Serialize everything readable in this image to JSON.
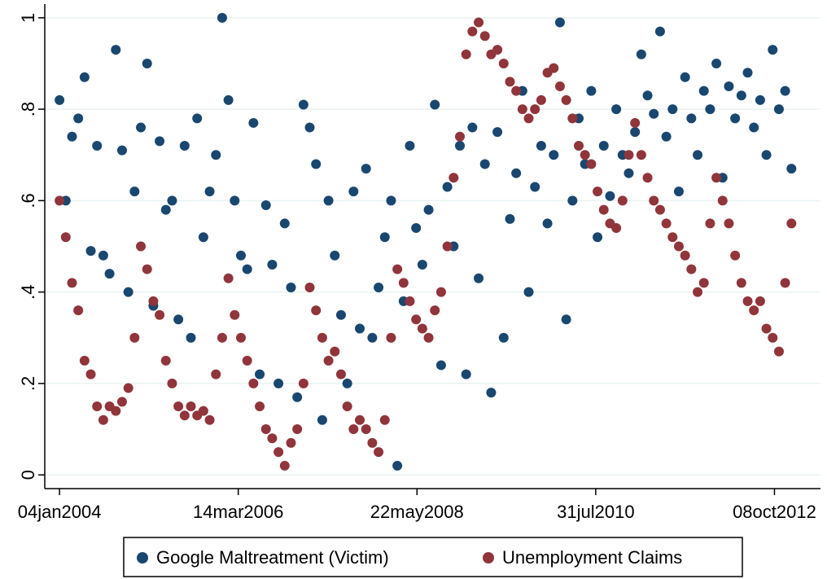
{
  "chart_data": {
    "type": "scatter",
    "x": [
      "2004-01-04",
      "2004-02-01",
      "2004-02-29",
      "2004-03-28",
      "2004-04-25",
      "2004-05-23",
      "2004-06-20",
      "2004-07-18",
      "2004-08-15",
      "2004-09-12",
      "2004-10-10",
      "2004-11-07",
      "2004-12-05",
      "2005-01-02",
      "2005-01-30",
      "2005-02-27",
      "2005-03-27",
      "2005-04-24",
      "2005-05-22",
      "2005-06-19",
      "2005-07-17",
      "2005-08-14",
      "2005-09-11",
      "2005-10-09",
      "2005-11-06",
      "2005-12-04",
      "2006-01-01",
      "2006-01-29",
      "2006-02-26",
      "2006-03-26",
      "2006-04-23",
      "2006-05-21",
      "2006-06-18",
      "2006-07-16",
      "2006-08-13",
      "2006-09-10",
      "2006-10-08",
      "2006-11-05",
      "2006-12-03",
      "2006-12-31",
      "2007-01-28",
      "2007-02-25",
      "2007-03-25",
      "2007-04-22",
      "2007-05-20",
      "2007-06-17",
      "2007-07-15",
      "2007-08-12",
      "2007-09-09",
      "2007-10-07",
      "2007-11-04",
      "2007-12-02",
      "2007-12-30",
      "2008-01-27",
      "2008-02-24",
      "2008-03-23",
      "2008-04-20",
      "2008-05-18",
      "2008-06-15",
      "2008-07-13",
      "2008-08-10",
      "2008-09-07",
      "2008-10-05",
      "2008-11-02",
      "2008-11-30",
      "2008-12-28",
      "2009-01-25",
      "2009-02-22",
      "2009-03-22",
      "2009-04-19",
      "2009-05-17",
      "2009-06-14",
      "2009-07-12",
      "2009-08-09",
      "2009-09-06",
      "2009-10-04",
      "2009-11-01",
      "2009-11-29",
      "2009-12-27",
      "2010-01-24",
      "2010-02-21",
      "2010-03-21",
      "2010-04-18",
      "2010-05-16",
      "2010-06-13",
      "2010-07-11",
      "2010-08-08",
      "2010-09-05",
      "2010-10-03",
      "2010-10-31",
      "2010-11-28",
      "2010-12-26",
      "2011-01-23",
      "2011-02-20",
      "2011-03-20",
      "2011-04-17",
      "2011-05-15",
      "2011-06-12",
      "2011-07-10",
      "2011-08-07",
      "2011-09-04",
      "2011-10-02",
      "2011-10-30",
      "2011-11-27",
      "2011-12-25",
      "2012-01-22",
      "2012-02-19",
      "2012-03-18",
      "2012-04-15",
      "2012-05-13",
      "2012-06-10",
      "2012-07-08",
      "2012-08-05",
      "2012-09-02",
      "2012-09-30",
      "2012-10-28",
      "2012-11-25",
      "2012-12-23"
    ],
    "series": [
      {
        "name": "Google Maltreatment (Victim)",
        "color": "#1a476f",
        "values": [
          0.82,
          0.6,
          0.74,
          0.78,
          0.87,
          0.49,
          0.72,
          0.48,
          0.44,
          0.93,
          0.71,
          0.4,
          0.62,
          0.76,
          0.9,
          0.37,
          0.73,
          0.58,
          0.6,
          0.34,
          0.72,
          0.3,
          0.78,
          0.52,
          0.62,
          0.7,
          1,
          0.82,
          0.6,
          0.48,
          0.45,
          0.77,
          0.22,
          0.59,
          0.46,
          0.2,
          0.55,
          0.41,
          0.17,
          0.81,
          0.76,
          0.68,
          0.12,
          0.6,
          0.48,
          0.35,
          0.2,
          0.62,
          0.32,
          0.67,
          0.3,
          0.41,
          0.52,
          0.6,
          0.02,
          0.38,
          0.72,
          0.54,
          0.46,
          0.58,
          0.81,
          0.24,
          0.63,
          0.5,
          0.72,
          0.22,
          0.76,
          0.43,
          0.68,
          0.18,
          0.75,
          0.3,
          0.56,
          0.66,
          0.84,
          0.4,
          0.63,
          0.72,
          0.55,
          0.7,
          0.99,
          0.34,
          0.6,
          0.78,
          0.68,
          0.84,
          0.52,
          0.72,
          0.61,
          0.8,
          0.7,
          0.66,
          0.75,
          0.92,
          0.83,
          0.79,
          0.97,
          0.74,
          0.8,
          0.62,
          0.87,
          0.78,
          0.7,
          0.84,
          0.8,
          0.9,
          0.65,
          0.85,
          0.78,
          0.83,
          0.88,
          0.76,
          0.82,
          0.7,
          0.93,
          0.8,
          0.84,
          0.67
        ]
      },
      {
        "name": "Unemployment Claims",
        "color": "#90353b",
        "values": [
          0.6,
          0.52,
          0.42,
          0.36,
          0.25,
          0.22,
          0.15,
          0.12,
          0.15,
          0.14,
          0.16,
          0.19,
          0.3,
          0.5,
          0.45,
          0.38,
          0.35,
          0.25,
          0.2,
          0.15,
          0.13,
          0.15,
          0.13,
          0.14,
          0.12,
          0.22,
          0.3,
          0.43,
          0.35,
          0.3,
          0.25,
          0.2,
          0.15,
          0.1,
          0.08,
          0.05,
          0.02,
          0.07,
          0.1,
          0.2,
          0.41,
          0.36,
          0.3,
          0.25,
          0.27,
          0.22,
          0.15,
          0.1,
          0.12,
          0.1,
          0.07,
          0.05,
          0.12,
          0.3,
          0.45,
          0.42,
          0.38,
          0.34,
          0.32,
          0.3,
          0.36,
          0.4,
          0.5,
          0.65,
          0.74,
          0.92,
          0.97,
          0.99,
          0.96,
          0.92,
          0.93,
          0.9,
          0.86,
          0.84,
          0.8,
          0.78,
          0.8,
          0.82,
          0.88,
          0.89,
          0.85,
          0.82,
          0.78,
          0.72,
          0.7,
          0.68,
          0.62,
          0.58,
          0.55,
          0.54,
          0.6,
          0.7,
          0.77,
          0.7,
          0.65,
          0.6,
          0.58,
          0.55,
          0.52,
          0.5,
          0.48,
          0.45,
          0.4,
          0.42,
          0.55,
          0.65,
          0.6,
          0.55,
          0.48,
          0.42,
          0.38,
          0.36,
          0.38,
          0.32,
          0.3,
          0.27,
          0.42,
          0.55
        ]
      }
    ],
    "xlim": [
      "2003-10-30",
      "2013-05-02"
    ],
    "xticks": [
      {
        "value": "2004-01-04",
        "label": "04jan2004"
      },
      {
        "value": "2006-03-14",
        "label": "14mar2006"
      },
      {
        "value": "2008-05-22",
        "label": "22may2008"
      },
      {
        "value": "2010-07-31",
        "label": "31jul2010"
      },
      {
        "value": "2012-10-08",
        "label": "08oct2012"
      }
    ],
    "ylim": [
      -0.03,
      1.03
    ],
    "yticks": [
      0,
      {
        "value": 0.2,
        "label": ".2"
      },
      {
        "value": 0.4,
        "label": ".4"
      },
      {
        "value": 0.6,
        "label": ".6"
      },
      {
        "value": 0.8,
        "label": ".8"
      },
      1
    ],
    "grid": true,
    "legend": "bottom"
  }
}
